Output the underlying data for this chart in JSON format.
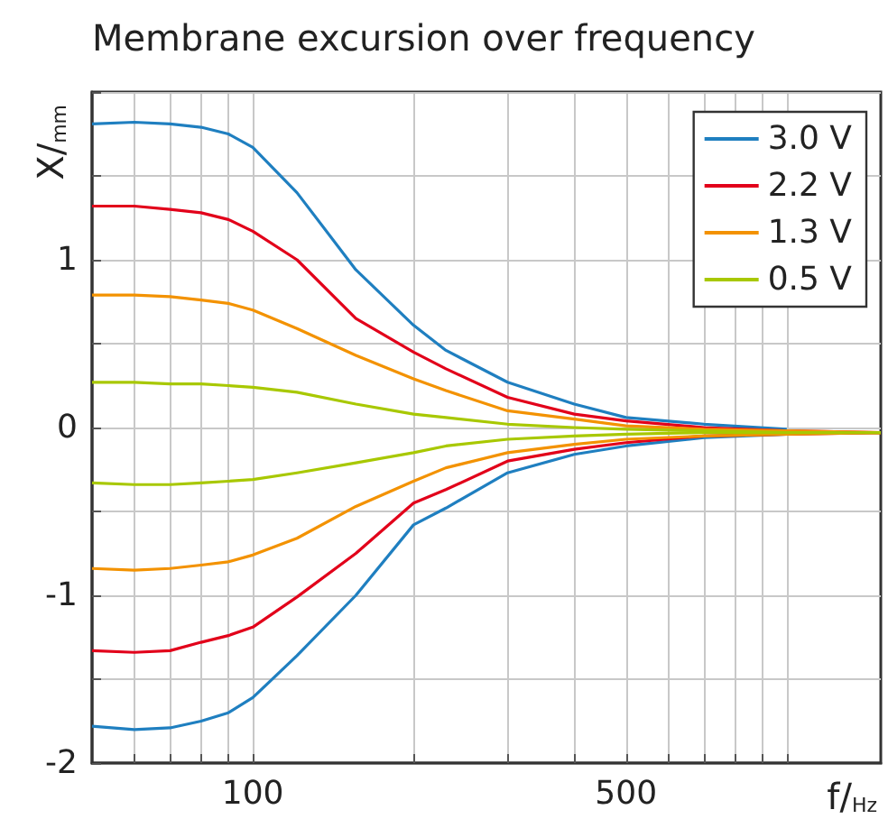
{
  "chart_data": {
    "type": "line",
    "title": "Membrane excursion over frequency",
    "xlabel": "f/$_{Hz}$",
    "ylabel": "X/$_{mm}$",
    "x": [
      50,
      60,
      70,
      80,
      90,
      100,
      121,
      156,
      200,
      230,
      300,
      400,
      500,
      700,
      1000,
      1500
    ],
    "series": [
      {
        "name": "3.0 V",
        "color": "#1f7fc0",
        "values": [
          1.81,
          1.82,
          1.81,
          1.79,
          1.75,
          1.67,
          1.4,
          0.94,
          0.61,
          0.46,
          0.27,
          0.14,
          0.06,
          0.02,
          -0.01,
          null
        ]
      },
      {
        "name": "2.2 V",
        "color": "#e2001a",
        "values": [
          1.32,
          1.32,
          1.3,
          1.28,
          1.24,
          1.17,
          1.0,
          0.65,
          0.45,
          0.35,
          0.18,
          0.08,
          0.04,
          0.0,
          -0.02,
          -0.03
        ]
      },
      {
        "name": "1.3 V",
        "color": "#f39200",
        "values": [
          0.79,
          0.79,
          0.78,
          0.76,
          0.74,
          0.7,
          0.59,
          0.43,
          0.29,
          0.22,
          0.1,
          0.05,
          0.01,
          -0.01,
          -0.02,
          -0.03
        ]
      },
      {
        "name": "0.5 V",
        "color": "#a8c800",
        "values": [
          0.27,
          0.27,
          0.26,
          0.26,
          0.25,
          0.24,
          0.21,
          0.14,
          0.08,
          0.06,
          0.02,
          0.0,
          -0.01,
          -0.02,
          -0.03,
          -0.03
        ]
      },
      {
        "color": "#1f7fc0",
        "values": [
          -1.78,
          -1.8,
          -1.79,
          -1.75,
          -1.7,
          -1.61,
          -1.36,
          -1.0,
          -0.58,
          -0.48,
          -0.27,
          -0.16,
          -0.11,
          -0.06,
          -0.04,
          null
        ]
      },
      {
        "color": "#e2001a",
        "values": [
          -1.33,
          -1.34,
          -1.33,
          -1.28,
          -1.24,
          -1.19,
          -1.01,
          -0.75,
          -0.45,
          -0.37,
          -0.2,
          -0.13,
          -0.09,
          -0.05,
          -0.04,
          -0.03
        ]
      },
      {
        "color": "#f39200",
        "values": [
          -0.84,
          -0.85,
          -0.84,
          -0.82,
          -0.8,
          -0.76,
          -0.66,
          -0.47,
          -0.32,
          -0.24,
          -0.15,
          -0.1,
          -0.07,
          -0.05,
          -0.04,
          -0.03
        ]
      },
      {
        "color": "#a8c800",
        "values": [
          -0.33,
          -0.34,
          -0.34,
          -0.33,
          -0.32,
          -0.31,
          -0.27,
          -0.21,
          -0.15,
          -0.11,
          -0.07,
          -0.05,
          -0.04,
          -0.03,
          -0.03,
          -0.03
        ]
      }
    ],
    "log": "x",
    "xlim": [
      50,
      1500
    ],
    "xticks": [
      {
        "value": 60,
        "label": null
      },
      {
        "value": 70,
        "label": null
      },
      {
        "value": 80,
        "label": null
      },
      {
        "value": 90,
        "label": null
      },
      100,
      {
        "value": 200,
        "label": null
      },
      {
        "value": 300,
        "label": null
      },
      {
        "value": 400,
        "label": null
      },
      500,
      {
        "value": 600,
        "label": null
      },
      {
        "value": 700,
        "label": null
      },
      {
        "value": 800,
        "label": null
      },
      {
        "value": 900,
        "label": null
      },
      {
        "value": 1000,
        "label": null
      }
    ],
    "ylim": [
      -2,
      2
    ],
    "yticks": [
      -2,
      {
        "value": -1.5,
        "label": null
      },
      -1,
      {
        "value": -0.5,
        "label": null
      },
      0,
      {
        "value": 0.5,
        "label": null
      },
      1,
      {
        "value": 1.5,
        "label": null
      },
      {
        "value": 2,
        "label": null
      }
    ],
    "grid": true,
    "legend": "top right",
    "marker": "none",
    "line_style": "solid"
  }
}
